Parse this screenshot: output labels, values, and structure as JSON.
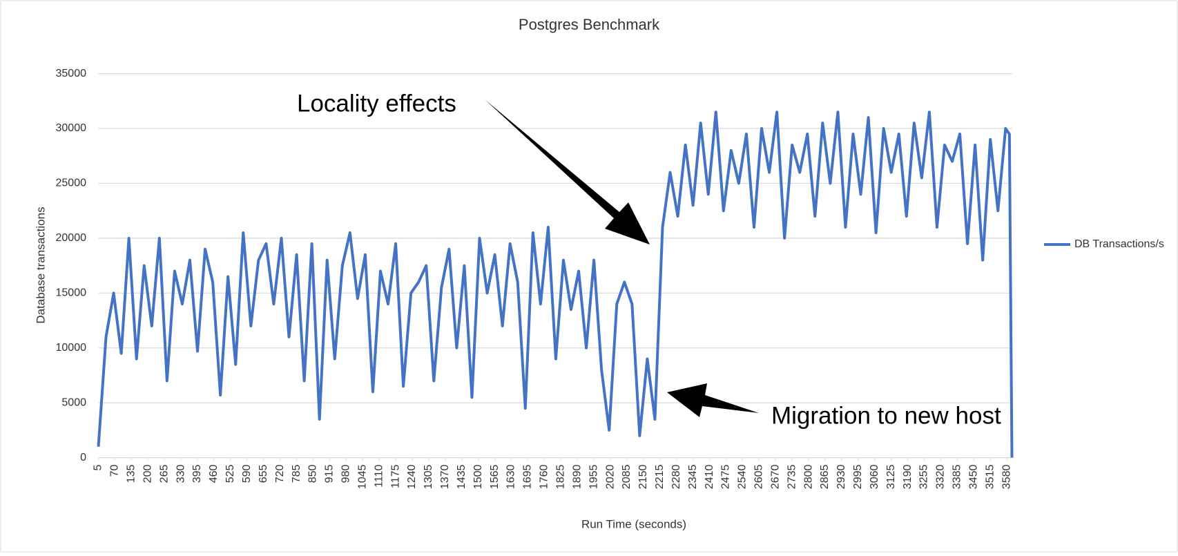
{
  "chart_data": {
    "type": "line",
    "title": "Postgres Benchmark",
    "xlabel": "Run Time (seconds)",
    "ylabel": "Database transactions",
    "annotations": [
      "Locality effects",
      "Migration to new host"
    ],
    "x": [
      5,
      35,
      65,
      95,
      125,
      155,
      185,
      215,
      245,
      275,
      305,
      335,
      365,
      395,
      425,
      455,
      485,
      515,
      545,
      575,
      605,
      635,
      665,
      695,
      725,
      755,
      785,
      815,
      845,
      875,
      905,
      935,
      965,
      995,
      1025,
      1055,
      1085,
      1115,
      1145,
      1175,
      1205,
      1235,
      1265,
      1295,
      1325,
      1355,
      1385,
      1415,
      1445,
      1475,
      1505,
      1535,
      1565,
      1595,
      1625,
      1655,
      1685,
      1715,
      1745,
      1775,
      1805,
      1835,
      1865,
      1895,
      1925,
      1955,
      1985,
      2015,
      2045,
      2075,
      2105,
      2135,
      2165,
      2195,
      2225,
      2255,
      2285,
      2315,
      2345,
      2375,
      2405,
      2435,
      2465,
      2495,
      2525,
      2555,
      2585,
      2615,
      2645,
      2675,
      2705,
      2735,
      2765,
      2795,
      2825,
      2855,
      2885,
      2915,
      2945,
      2975,
      3005,
      3035,
      3065,
      3095,
      3125,
      3155,
      3185,
      3215,
      3245,
      3275,
      3305,
      3335,
      3365,
      3395,
      3425,
      3455,
      3485,
      3515,
      3545,
      3575,
      3590,
      3600
    ],
    "series": [
      {
        "name": "DB Transactions/s",
        "color": "#4472c4",
        "values": [
          1000,
          11000,
          15000,
          9500,
          20000,
          9000,
          17500,
          12000,
          20000,
          7000,
          17000,
          14000,
          18000,
          9700,
          19000,
          16000,
          5700,
          16500,
          8500,
          20500,
          12000,
          18000,
          19500,
          14000,
          20000,
          11000,
          18500,
          7000,
          19500,
          3500,
          18000,
          9000,
          17500,
          20500,
          14500,
          18500,
          6000,
          17000,
          14000,
          19500,
          6500,
          15000,
          16000,
          17500,
          7000,
          15500,
          19000,
          10000,
          17500,
          5500,
          20000,
          15000,
          18500,
          12000,
          19500,
          16000,
          4500,
          20500,
          14000,
          21000,
          9000,
          18000,
          13500,
          17000,
          10000,
          18000,
          8000,
          2500,
          14000,
          16000,
          14000,
          2000,
          9000,
          3500,
          21000,
          26000,
          22000,
          28500,
          23000,
          30500,
          24000,
          31500,
          22500,
          28000,
          25000,
          29500,
          21000,
          30000,
          26000,
          31500,
          20000,
          28500,
          26000,
          29500,
          22000,
          30500,
          25000,
          31500,
          21000,
          29500,
          24000,
          31000,
          20500,
          30000,
          26000,
          29500,
          22000,
          30500,
          25500,
          31500,
          21000,
          28500,
          27000,
          29500,
          19500,
          28500,
          18000,
          29000,
          22500,
          30000,
          29500,
          0
        ]
      }
    ],
    "xlim": [
      5,
      3600
    ],
    "xticks": [
      5,
      70,
      135,
      200,
      265,
      330,
      395,
      460,
      525,
      590,
      655,
      720,
      785,
      850,
      915,
      980,
      1045,
      1110,
      1175,
      1240,
      1305,
      1370,
      1435,
      1500,
      1565,
      1630,
      1695,
      1760,
      1825,
      1890,
      1955,
      2020,
      2085,
      2150,
      2215,
      2280,
      2345,
      2410,
      2475,
      2540,
      2605,
      2670,
      2735,
      2800,
      2865,
      2930,
      2995,
      3060,
      3125,
      3190,
      3255,
      3320,
      3385,
      3450,
      3515,
      3580
    ],
    "ylim": [
      0,
      35000
    ],
    "yticks": [
      0,
      5000,
      10000,
      15000,
      20000,
      25000,
      30000,
      35000
    ],
    "grid": true,
    "legend": "right"
  }
}
